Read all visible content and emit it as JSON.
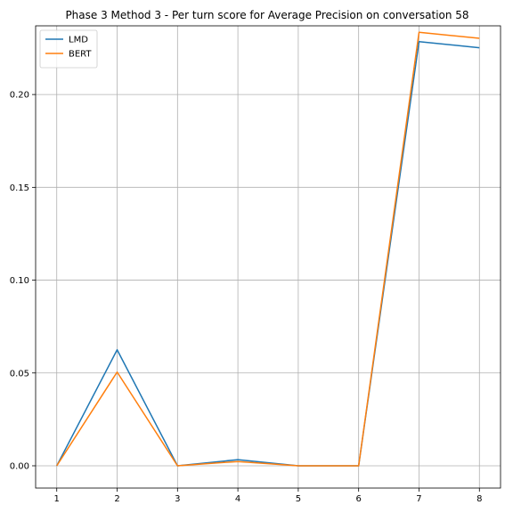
{
  "chart_data": {
    "type": "line",
    "title": "Phase 3 Method 3 - Per turn score for Average Precision on conversation 58",
    "xlabel": "",
    "ylabel": "",
    "x": [
      1,
      2,
      3,
      4,
      5,
      6,
      7,
      8
    ],
    "x_ticks": [
      "1",
      "2",
      "3",
      "4",
      "5",
      "6",
      "7",
      "8"
    ],
    "y_ticks": [
      "0.00",
      "0.05",
      "0.10",
      "0.15",
      "0.20"
    ],
    "xlim": [
      0.65,
      8.35
    ],
    "ylim": [
      -0.012,
      0.237
    ],
    "grid": true,
    "legend_position": "upper-left",
    "series": [
      {
        "name": "LMD",
        "color": "#1f77b4",
        "values": [
          0.0,
          0.0625,
          0.0,
          0.0033,
          0.0,
          0.0,
          0.2285,
          0.2252
        ]
      },
      {
        "name": "BERT",
        "color": "#ff7f0e",
        "values": [
          0.0,
          0.0505,
          0.0,
          0.0023,
          0.0,
          0.0,
          0.2335,
          0.2303
        ]
      }
    ]
  }
}
